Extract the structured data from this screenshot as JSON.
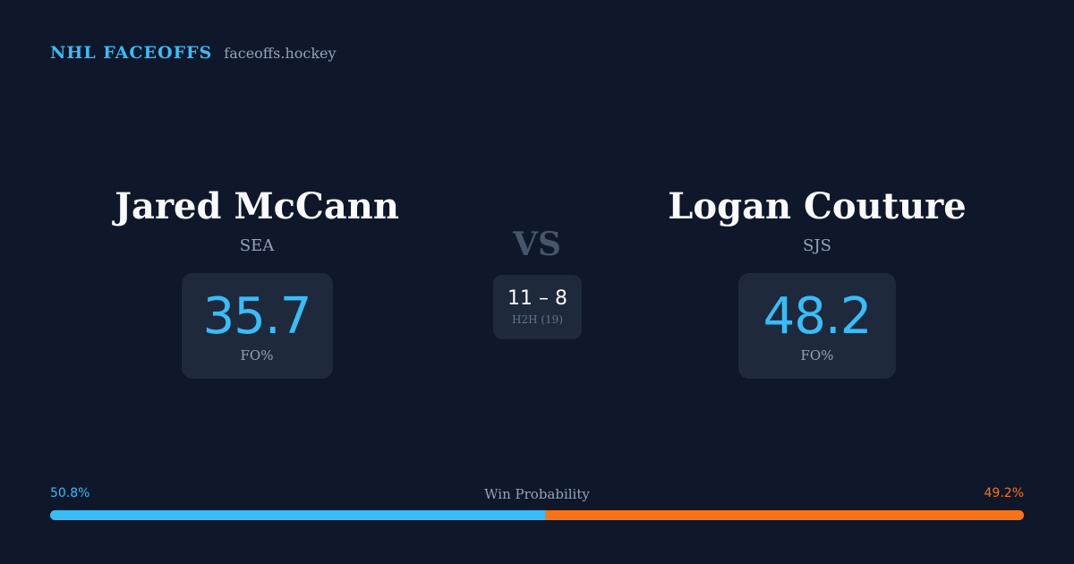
{
  "brand": {
    "name": "NHL FACEOFFS",
    "domain": "faceoffs.hockey"
  },
  "players": {
    "left": {
      "name": "Jared McCann",
      "team": "SEA",
      "fo_pct": "35.7",
      "fo_label": "FO%"
    },
    "right": {
      "name": "Logan Couture",
      "team": "SJS",
      "fo_pct": "48.2",
      "fo_label": "FO%"
    }
  },
  "versus": "VS",
  "h2h": {
    "score": "11 – 8",
    "label": "H2H (19)"
  },
  "win_probability": {
    "title": "Win Probability",
    "left_label": "50.8%",
    "right_label": "49.2%",
    "left_value": 50.8,
    "right_value": 49.2
  },
  "colors": {
    "background": "#0f172a",
    "card": "#1e293b",
    "accent_blue": "#38bdf8",
    "accent_orange": "#f97316",
    "muted": "#94a3b8"
  }
}
